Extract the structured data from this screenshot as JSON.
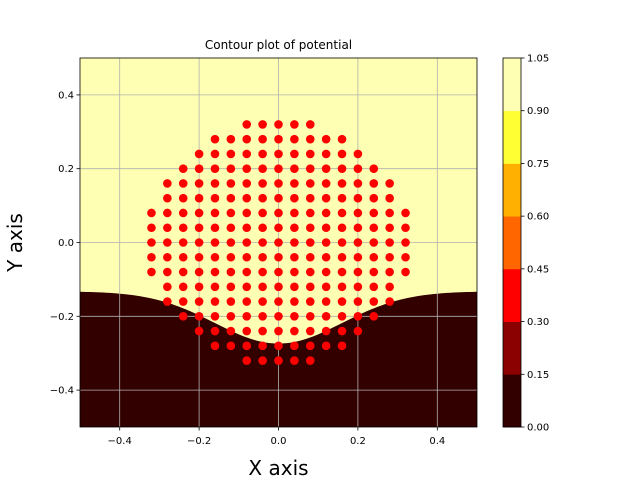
{
  "chart_data": {
    "type": "contour",
    "title": "Contour plot of potential",
    "xlabel": "X axis",
    "ylabel": "Y axis",
    "xlim": [
      -0.5,
      0.5
    ],
    "ylim": [
      -0.5,
      0.5
    ],
    "xticks": [
      -0.4,
      -0.2,
      0.0,
      0.2,
      0.4
    ],
    "yticks": [
      -0.4,
      -0.2,
      0.0,
      0.2,
      0.4
    ],
    "xtick_labels": [
      "−0.4",
      "−0.2",
      "0.0",
      "0.2",
      "0.4"
    ],
    "ytick_labels": [
      "−0.4",
      "−0.2",
      "0.0",
      "0.2",
      "0.4"
    ],
    "grid": true,
    "colormap": "hot",
    "levels": [
      0.0,
      0.15,
      0.3,
      0.45,
      0.6,
      0.75,
      0.9,
      1.05
    ],
    "colorbar_tick_labels": [
      "0.00",
      "0.15",
      "0.30",
      "0.45",
      "0.60",
      "0.75",
      "0.90",
      "1.05"
    ],
    "band_colors": [
      "#330000",
      "#8b0000",
      "#ff0000",
      "#ff6600",
      "#ffb000",
      "#ffff33",
      "#ffffb3"
    ],
    "points": {
      "color": "#ff0000",
      "spacing": 0.04,
      "rows": [
        {
          "y": 0.32,
          "x_min": -0.08,
          "x_max": 0.08
        },
        {
          "y": 0.28,
          "x_min": -0.16,
          "x_max": 0.16
        },
        {
          "y": 0.24,
          "x_min": -0.2,
          "x_max": 0.2
        },
        {
          "y": 0.2,
          "x_min": -0.24,
          "x_max": 0.24
        },
        {
          "y": 0.16,
          "x_min": -0.28,
          "x_max": 0.28
        },
        {
          "y": 0.12,
          "x_min": -0.28,
          "x_max": 0.28
        },
        {
          "y": 0.08,
          "x_min": -0.32,
          "x_max": 0.32
        },
        {
          "y": 0.04,
          "x_min": -0.32,
          "x_max": 0.32
        },
        {
          "y": 0.0,
          "x_min": -0.32,
          "x_max": 0.32
        },
        {
          "y": -0.04,
          "x_min": -0.32,
          "x_max": 0.32
        },
        {
          "y": -0.08,
          "x_min": -0.32,
          "x_max": 0.32
        },
        {
          "y": -0.12,
          "x_min": -0.28,
          "x_max": 0.28
        },
        {
          "y": -0.16,
          "x_min": -0.28,
          "x_max": 0.28
        },
        {
          "y": -0.2,
          "x_min": -0.24,
          "x_max": 0.24
        },
        {
          "y": -0.24,
          "x_min": -0.2,
          "x_max": 0.2
        },
        {
          "y": -0.28,
          "x_min": -0.16,
          "x_max": 0.16
        },
        {
          "y": -0.32,
          "x_min": -0.08,
          "x_max": 0.08
        }
      ]
    }
  }
}
